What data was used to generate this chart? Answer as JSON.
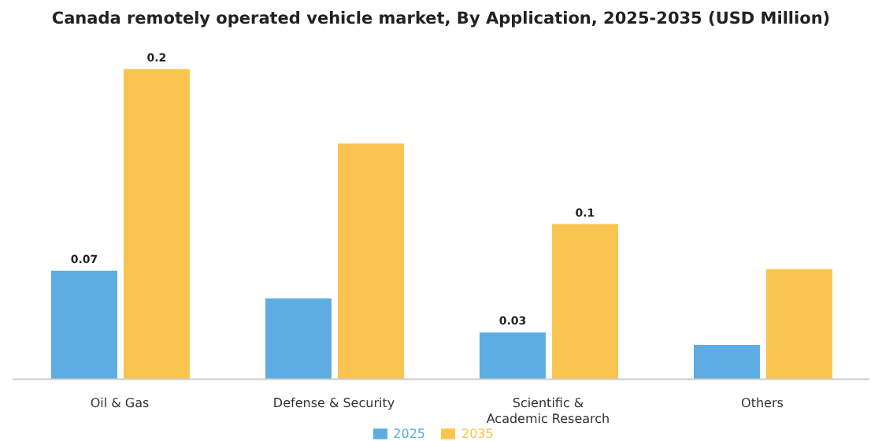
{
  "chart_data": {
    "type": "bar",
    "title": "Canada remotely operated vehicle market, By Application, 2025-2035 (USD Million)",
    "categories": [
      "Oil & Gas",
      "Defense & Security",
      "Scientific & Academic Research",
      "Others"
    ],
    "series": [
      {
        "name": "2025",
        "color": "#5dade2",
        "values": [
          0.07,
          0.052,
          0.03,
          0.022
        ],
        "value_labels": [
          "0.07",
          null,
          "0.03",
          null
        ]
      },
      {
        "name": "2035",
        "color": "#f9c44f",
        "values": [
          0.2,
          0.152,
          0.1,
          0.071
        ],
        "value_labels": [
          "0.2",
          null,
          "0.1",
          null
        ]
      }
    ],
    "legend": "bottom",
    "grid": false
  }
}
